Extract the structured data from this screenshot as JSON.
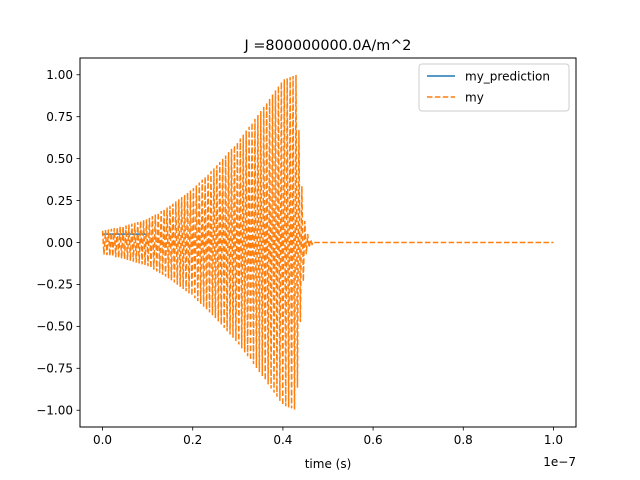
{
  "chart_data": {
    "type": "line",
    "title": "J =800000000.0A/m^2",
    "xlabel": "time (s)",
    "ylabel": "",
    "x_offset_text": "1e−7",
    "xlim": [
      -0.05,
      1.05
    ],
    "ylim": [
      -1.1,
      1.1
    ],
    "xticks": [
      0.0,
      0.2,
      0.4,
      0.6,
      0.8,
      1.0
    ],
    "xtick_labels": [
      "0.0",
      "0.2",
      "0.4",
      "0.6",
      "0.8",
      "1.0"
    ],
    "yticks": [
      -1.0,
      -0.75,
      -0.5,
      -0.25,
      0.0,
      0.25,
      0.5,
      0.75,
      1.0
    ],
    "ytick_labels": [
      "−1.00",
      "−0.75",
      "−0.50",
      "−0.25",
      "0.00",
      "0.25",
      "0.50",
      "0.75",
      "1.00"
    ],
    "grid": false,
    "legend_position": "upper right",
    "series": [
      {
        "name": "my_prediction",
        "color": "#1f77b4",
        "style": "solid",
        "x": [
          0.0,
          0.02,
          0.04,
          0.06,
          0.08,
          0.1
        ],
        "y": [
          0.05,
          0.05,
          0.05,
          0.05,
          0.05,
          0.05
        ]
      },
      {
        "name": "my",
        "color": "#ff7f0e",
        "style": "dashed",
        "oscillation_period": 0.0065,
        "envelope": {
          "x": [
            0.0,
            0.05,
            0.1,
            0.15,
            0.2,
            0.25,
            0.3,
            0.35,
            0.4,
            0.43,
            0.44,
            0.45,
            0.46,
            0.47,
            1.0
          ],
          "y": [
            0.07,
            0.1,
            0.14,
            0.22,
            0.32,
            0.45,
            0.6,
            0.78,
            0.97,
            1.0,
            0.4,
            0.08,
            0.02,
            0.0,
            0.0
          ]
        },
        "offset_start": 0.05,
        "x_end": 1.0
      }
    ]
  }
}
